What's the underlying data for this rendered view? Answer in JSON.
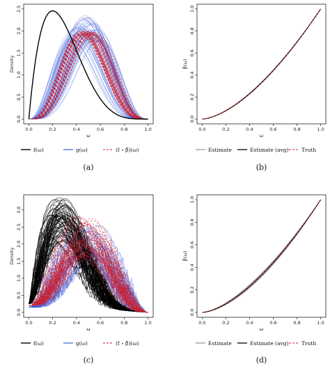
{
  "chart_data": [
    {
      "panel": "a",
      "type": "line",
      "caption": "(a)",
      "xlabel": "ω",
      "ylabel": "Density",
      "xlim": [
        0,
        1
      ],
      "ylim": [
        0,
        2.5
      ],
      "xticks": [
        "0.0",
        "0.2",
        "0.4",
        "0.6",
        "0.8",
        "1.0"
      ],
      "yticks": [
        "0.0",
        "0.5",
        "1.0",
        "1.5",
        "2.0",
        "2.5"
      ],
      "legend": [
        "f(ω)",
        "g(ω)",
        "(f ∘ β̂)(ω)"
      ],
      "colors": {
        "f": "#000000",
        "g": "#3a5bd9",
        "comp": "#d11f2c"
      },
      "series": [
        {
          "curve": "f",
          "shape": "beta",
          "a": 2,
          "b": 5,
          "peak_x": 0.2,
          "peak_y": 2.46
        },
        {
          "curve": "g",
          "shape": "beta_family",
          "modes": [
            0.35,
            0.6
          ],
          "peak_y_range": [
            1.9,
            2.4
          ],
          "crossing": [
            0.5,
            1.97
          ]
        },
        {
          "curve": "comp",
          "shape": "beta_family",
          "modes": [
            0.42,
            0.56
          ],
          "peak_y_range": [
            1.9,
            2.0
          ]
        }
      ]
    },
    {
      "panel": "b",
      "type": "line",
      "caption": "(b)",
      "xlabel": "ω",
      "ylabel": "β̂(ω)",
      "xlim": [
        0,
        1
      ],
      "ylim": [
        0,
        1
      ],
      "xticks": [
        "0.0",
        "0.2",
        "0.4",
        "0.6",
        "0.8",
        "1.0"
      ],
      "yticks": [
        "0.0",
        "0.2",
        "0.4",
        "0.6",
        "0.8",
        "1.0"
      ],
      "legend": [
        "Estimate",
        "Estimate (avg)",
        "Truth"
      ],
      "colors": {
        "est": "#9a9a9a",
        "avg": "#000000",
        "truth": "#d11f2c"
      },
      "series": [
        {
          "curve": "truth",
          "shape": "power",
          "exponent": 1.6,
          "points": [
            [
              0,
              0
            ],
            [
              0.2,
              0.076
            ],
            [
              0.4,
              0.231
            ],
            [
              0.6,
              0.442
            ],
            [
              0.8,
              0.7
            ],
            [
              1,
              1
            ]
          ]
        }
      ]
    },
    {
      "panel": "c",
      "type": "line",
      "caption": "(c)",
      "xlabel": "ω",
      "ylabel": "Density",
      "xlim": [
        0,
        1
      ],
      "ylim": [
        0,
        3.3
      ],
      "xticks": [
        "0.0",
        "0.2",
        "0.4",
        "0.6",
        "0.8",
        "1.0"
      ],
      "yticks": [
        "0.0",
        "0.5",
        "1.0",
        "1.5",
        "2.0",
        "2.5",
        "3.0"
      ],
      "legend": [
        "f(ω)",
        "g(ω)",
        "(f ∘ β̂)(ω)"
      ],
      "colors": {
        "f": "#000000",
        "g": "#3a5bd9",
        "comp": "#d11f2c"
      },
      "series": [
        {
          "curve": "f",
          "shape": "beta_family",
          "modes": [
            0.18,
            0.32
          ],
          "peak_y_range": [
            1.9,
            3.2
          ]
        },
        {
          "curve": "g",
          "shape": "beta_family",
          "modes": [
            0.38,
            0.62
          ],
          "peak_y_range": [
            1.5,
            2.5
          ]
        },
        {
          "curve": "comp",
          "shape": "beta_family",
          "modes": [
            0.4,
            0.58
          ],
          "peak_y_range": [
            1.5,
            2.7
          ]
        }
      ]
    },
    {
      "panel": "d",
      "type": "line",
      "caption": "(d)",
      "xlabel": "ω",
      "ylabel": "β̂(ω)",
      "xlim": [
        0,
        1
      ],
      "ylim": [
        0,
        1
      ],
      "xticks": [
        "0.0",
        "0.2",
        "0.4",
        "0.6",
        "0.8",
        "1.0"
      ],
      "yticks": [
        "0.0",
        "0.2",
        "0.4",
        "0.6",
        "0.8",
        "1.0"
      ],
      "legend": [
        "Estimate",
        "Estimate (avg)",
        "Truth"
      ],
      "colors": {
        "est": "#9a9a9a",
        "avg": "#000000",
        "truth": "#d11f2c"
      },
      "series": [
        {
          "curve": "truth",
          "shape": "power",
          "exponent": 1.6,
          "points": [
            [
              0,
              0
            ],
            [
              0.2,
              0.076
            ],
            [
              0.4,
              0.231
            ],
            [
              0.6,
              0.442
            ],
            [
              0.8,
              0.7
            ],
            [
              1,
              1
            ]
          ]
        }
      ]
    }
  ]
}
